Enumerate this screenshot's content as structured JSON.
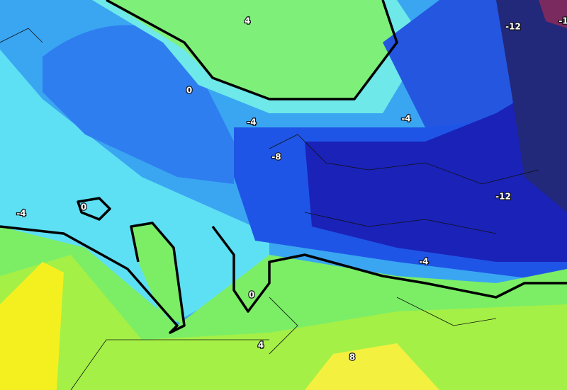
{
  "map": {
    "labels": [
      {
        "text": "4"
      },
      {
        "text": "0"
      },
      {
        "text": "-4"
      },
      {
        "text": "-4"
      },
      {
        "text": "-8"
      },
      {
        "text": "-12"
      },
      {
        "text": "-1"
      },
      {
        "text": "-12"
      },
      {
        "text": "0"
      },
      {
        "text": "-4"
      },
      {
        "text": "-4"
      },
      {
        "text": "0"
      },
      {
        "text": "4"
      },
      {
        "text": "8"
      }
    ]
  }
}
